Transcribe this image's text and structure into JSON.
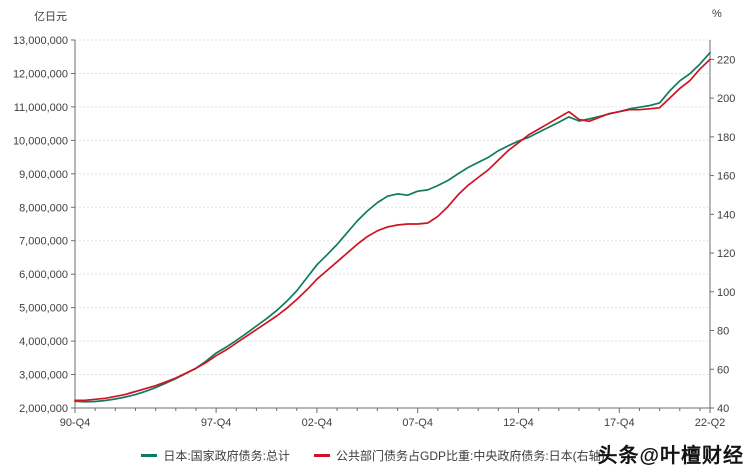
{
  "watermark": "头条@叶檀财经",
  "chart_data": {
    "type": "line",
    "title": "",
    "grid": "horizontal-dotted",
    "legend_position": "bottom-center",
    "left_axis": {
      "unit": "亿日元",
      "min": 2000000,
      "max": 13000000,
      "tick_step": 1000000,
      "tick_labels": [
        "2,000,000",
        "3,000,000",
        "4,000,000",
        "5,000,000",
        "6,000,000",
        "7,000,000",
        "8,000,000",
        "9,000,000",
        "10,000,000",
        "11,000,000",
        "12,000,000",
        "13,000,000"
      ]
    },
    "right_axis": {
      "unit": "%",
      "min": 40,
      "max": 230,
      "tick_step": 20,
      "tick_labels": [
        "40",
        "60",
        "80",
        "100",
        "120",
        "140",
        "160",
        "180",
        "200",
        "220"
      ]
    },
    "x_axis": {
      "span_years": 31.5,
      "minor_tick_every_years": 1,
      "ticks": [
        {
          "label": "90-Q4",
          "t": 0
        },
        {
          "label": "97-Q4",
          "t": 7
        },
        {
          "label": "02-Q4",
          "t": 12
        },
        {
          "label": "07-Q4",
          "t": 17
        },
        {
          "label": "12-Q4",
          "t": 22
        },
        {
          "label": "17-Q4",
          "t": 27
        },
        {
          "label": "22-Q2",
          "t": 31.5
        }
      ]
    },
    "series": [
      {
        "name": "日本:国家政府债务:总计",
        "color": "#0f7b5e",
        "axis": "left",
        "x_start_years": 0,
        "x_step_years": 0.5,
        "values": [
          2200000,
          2185000,
          2195000,
          2225000,
          2270000,
          2330000,
          2400000,
          2500000,
          2610000,
          2740000,
          2880000,
          3030000,
          3190000,
          3400000,
          3640000,
          3820000,
          4020000,
          4230000,
          4450000,
          4670000,
          4910000,
          5190000,
          5500000,
          5890000,
          6280000,
          6580000,
          6890000,
          7240000,
          7590000,
          7890000,
          8140000,
          8330000,
          8400000,
          8360000,
          8480000,
          8520000,
          8650000,
          8800000,
          9000000,
          9190000,
          9340000,
          9490000,
          9690000,
          9840000,
          9980000,
          10090000,
          10240000,
          10390000,
          10540000,
          10700000,
          10580000,
          10640000,
          10710000,
          10790000,
          10860000,
          10940000,
          10990000,
          11040000,
          11120000,
          11480000,
          11780000,
          11990000,
          12280000,
          12620000
        ]
      },
      {
        "name": "公共部门债务占GDP比重:中央政府债务:日本(右轴)",
        "color": "#cf1322",
        "axis": "right",
        "x_start_years": 0,
        "x_step_years": 0.5,
        "values": [
          44,
          44,
          44.5,
          45,
          46,
          47,
          48.5,
          50,
          51.5,
          53.5,
          55.5,
          58,
          60.5,
          63.5,
          67,
          70,
          73.5,
          77,
          80.5,
          84,
          87.5,
          91.5,
          96,
          101,
          106.5,
          111,
          115.5,
          120,
          124.5,
          128.5,
          131.5,
          133.5,
          134.5,
          135,
          135,
          135.5,
          139,
          144,
          150,
          155,
          159,
          163,
          168,
          173,
          177,
          181,
          184,
          187,
          190,
          193,
          189,
          188,
          190,
          192,
          193,
          194,
          194,
          194.5,
          195,
          200,
          205,
          209,
          215,
          220
        ]
      }
    ]
  }
}
